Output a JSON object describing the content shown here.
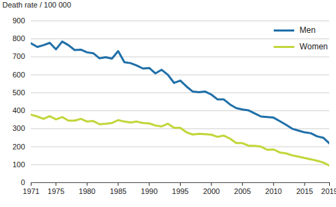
{
  "chart_data": {
    "type": "line",
    "y_label": "Death rate / 100 000",
    "x": [
      1971,
      1972,
      1973,
      1974,
      1975,
      1976,
      1977,
      1978,
      1979,
      1980,
      1981,
      1982,
      1983,
      1984,
      1985,
      1986,
      1987,
      1988,
      1989,
      1990,
      1991,
      1992,
      1993,
      1994,
      1995,
      1996,
      1997,
      1998,
      1999,
      2000,
      2001,
      2002,
      2003,
      2004,
      2005,
      2006,
      2007,
      2008,
      2009,
      2010,
      2011,
      2012,
      2013,
      2014,
      2015,
      2016,
      2017,
      2018,
      2019
    ],
    "series": [
      {
        "name": "Men",
        "color": "#1f6fa8",
        "values": [
          775,
          755,
          765,
          778,
          742,
          785,
          765,
          738,
          740,
          725,
          720,
          692,
          698,
          690,
          732,
          670,
          665,
          652,
          635,
          638,
          608,
          628,
          600,
          555,
          568,
          535,
          507,
          503,
          507,
          490,
          463,
          463,
          435,
          415,
          407,
          402,
          385,
          368,
          365,
          362,
          342,
          322,
          300,
          290,
          280,
          275,
          258,
          250,
          218
        ]
      },
      {
        "name": "Women",
        "color": "#c2d63a",
        "values": [
          378,
          368,
          355,
          370,
          352,
          365,
          345,
          345,
          355,
          340,
          343,
          325,
          328,
          332,
          348,
          340,
          335,
          340,
          332,
          330,
          318,
          313,
          328,
          305,
          305,
          280,
          268,
          272,
          270,
          267,
          255,
          262,
          245,
          220,
          220,
          205,
          205,
          200,
          183,
          185,
          168,
          163,
          152,
          145,
          137,
          130,
          122,
          112,
          95
        ]
      }
    ],
    "xlim": [
      1971,
      2019
    ],
    "xticks": [
      1971,
      1975,
      1980,
      1985,
      1990,
      1995,
      2000,
      2005,
      2010,
      2015,
      2019
    ],
    "ylim": [
      0,
      900
    ],
    "yticks": [
      0,
      100,
      200,
      300,
      400,
      500,
      600,
      700,
      800,
      900
    ],
    "grid": true,
    "legend": "upper right"
  }
}
